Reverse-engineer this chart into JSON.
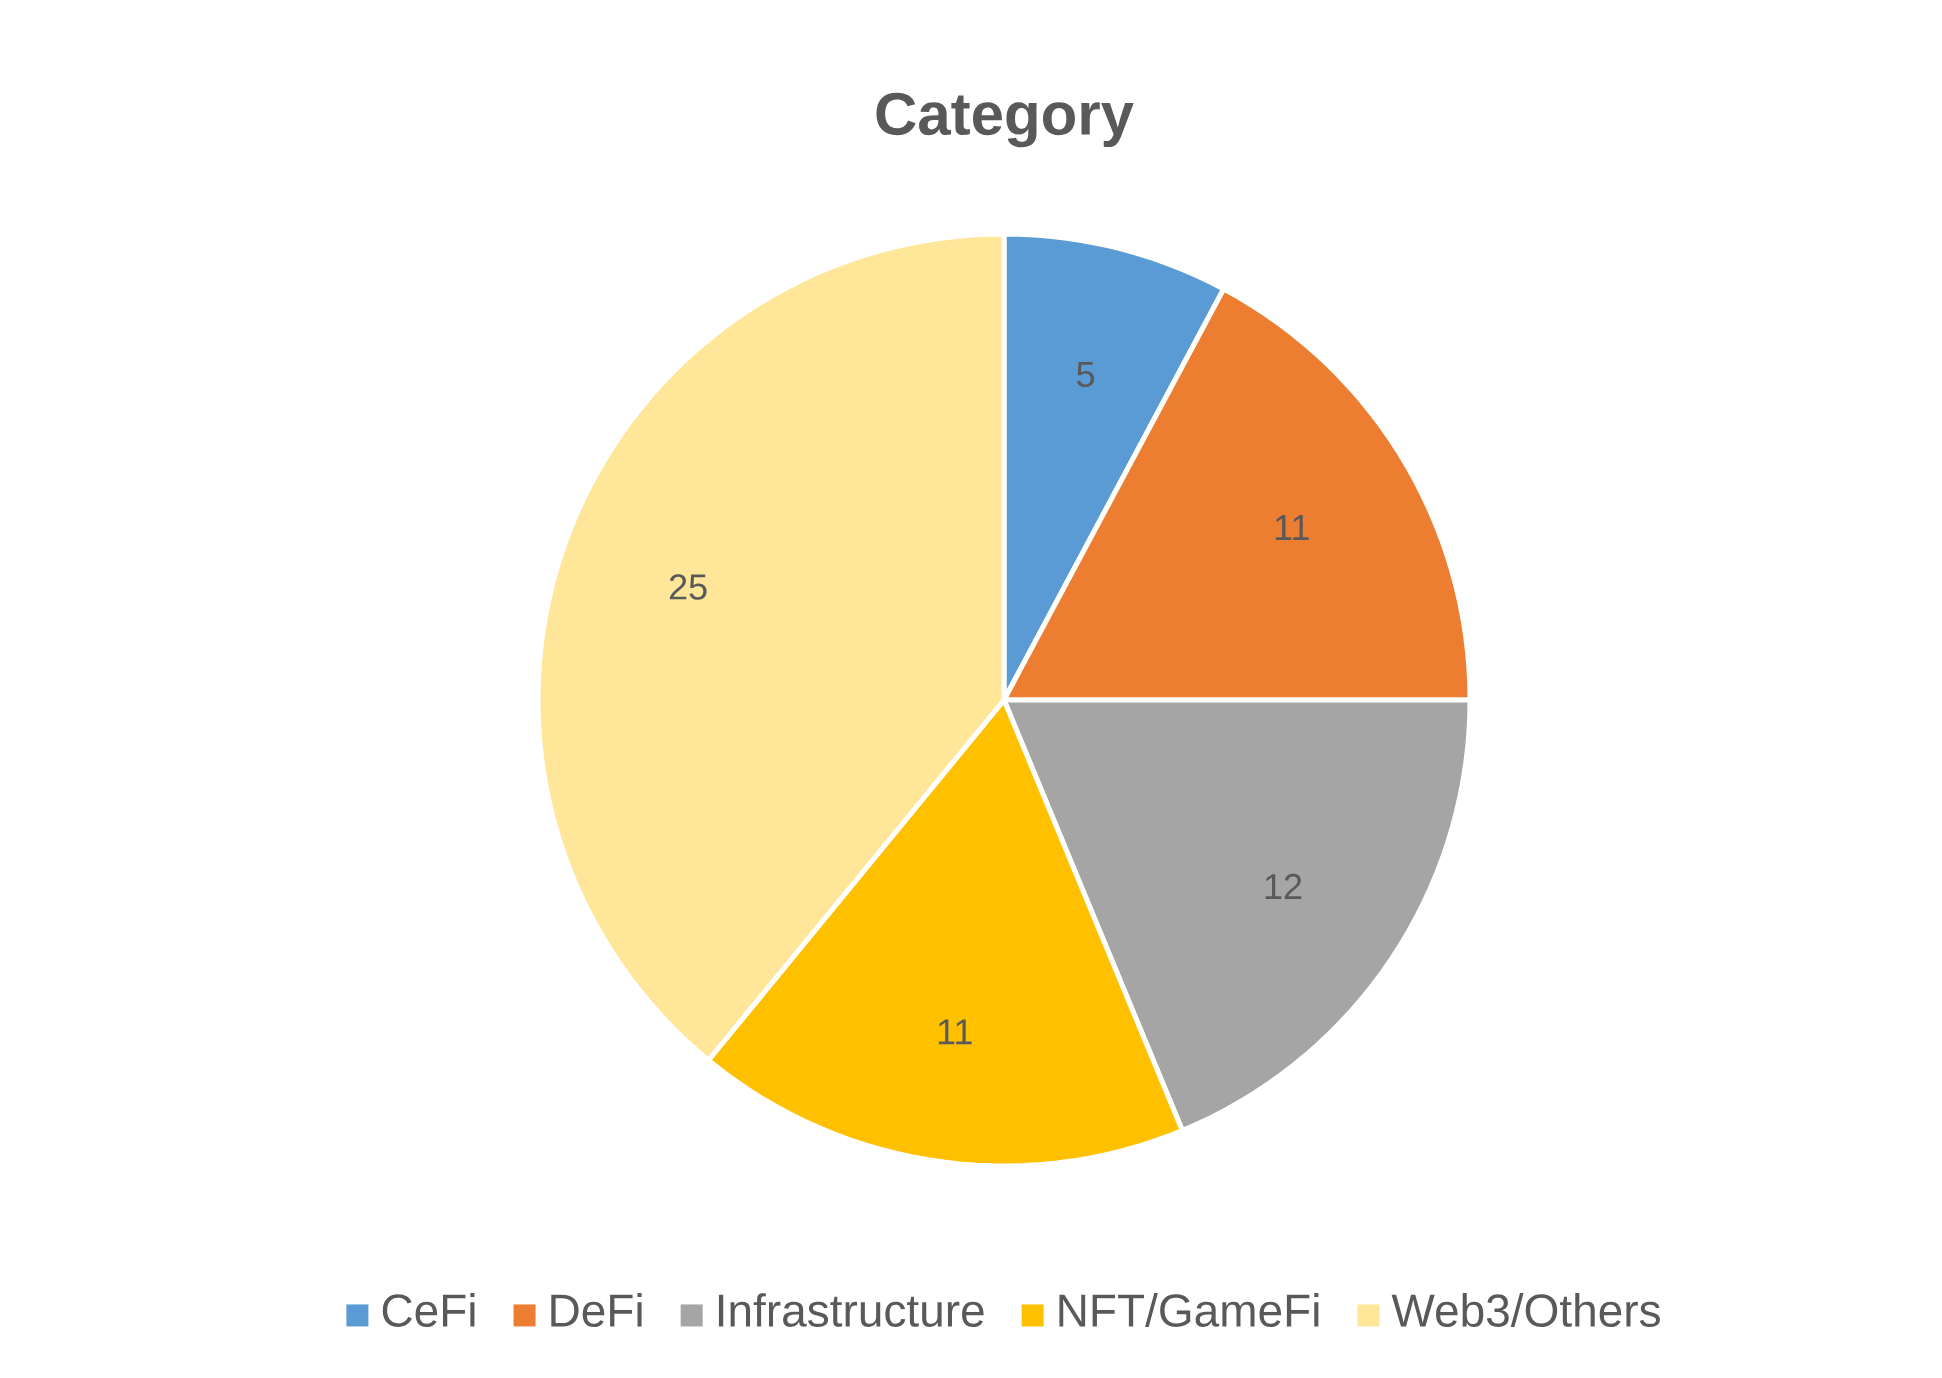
{
  "chart_data": {
    "type": "pie",
    "title": "Category",
    "categories": [
      "CeFi",
      "DeFi",
      "Infrastructure",
      "NFT/GameFi",
      "Web3/Others"
    ],
    "values": [
      5,
      11,
      12,
      11,
      25
    ],
    "colors": [
      "#5b9bd5",
      "#ed7d31",
      "#a5a5a5",
      "#ffc000",
      "#ffe699"
    ],
    "data_labels": true,
    "legend": "bottom"
  }
}
